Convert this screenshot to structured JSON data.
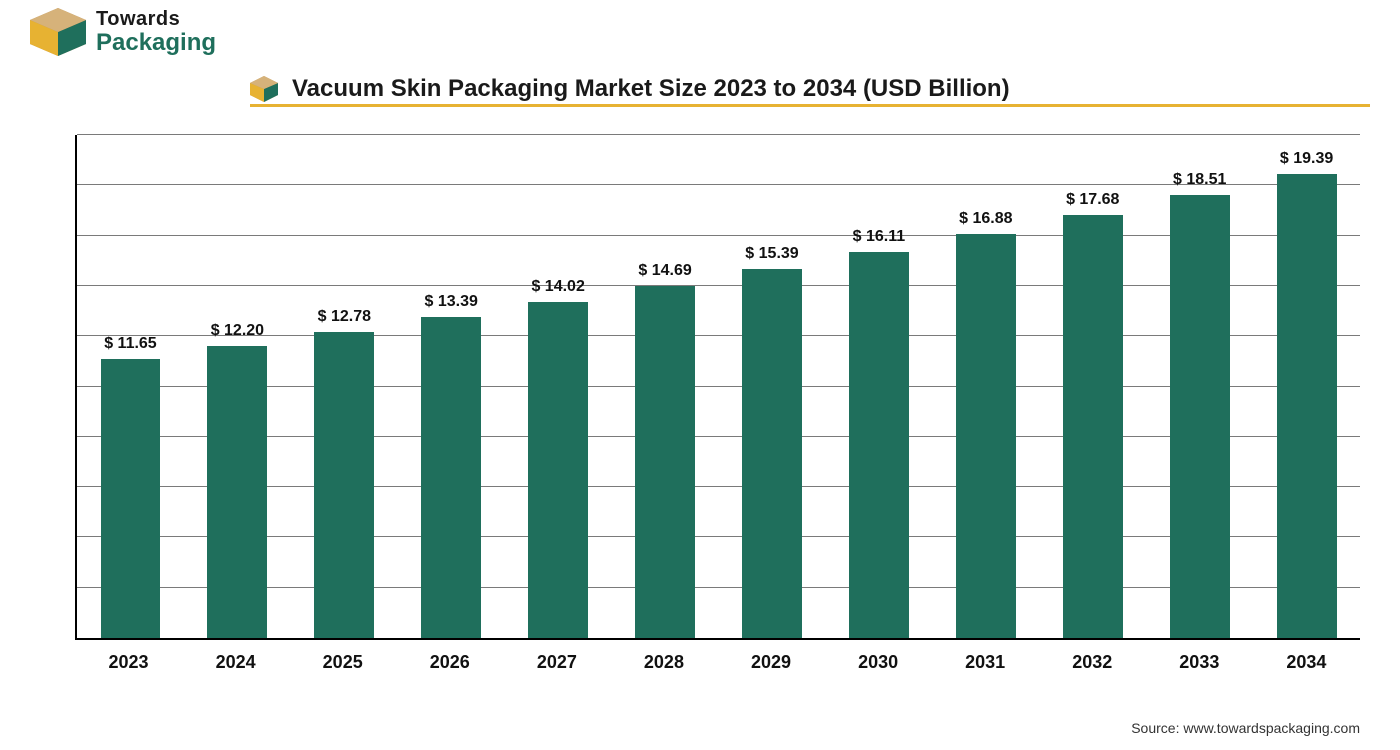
{
  "brand": {
    "top": "Towards",
    "bottom": "Packaging"
  },
  "title": "Vacuum Skin Packaging Market Size 2023 to 2034 (USD Billion)",
  "source": "Source: www.towardspackaging.com",
  "chart": {
    "type": "bar",
    "years": [
      "2023",
      "2024",
      "2025",
      "2026",
      "2027",
      "2028",
      "2029",
      "2030",
      "2031",
      "2032",
      "2033",
      "2034"
    ],
    "values": [
      11.65,
      12.2,
      12.78,
      13.39,
      14.02,
      14.69,
      15.39,
      16.11,
      16.88,
      17.68,
      18.51,
      19.39
    ],
    "value_prefix": "$ ",
    "bar_color": "#1f6f5c",
    "grid_color": "#7a7a7a",
    "axis_color": "#000000",
    "background": "#ffffff",
    "ylim_max": 21,
    "gridlines": 10,
    "bar_width_pct": 56,
    "label_fontsize": 16,
    "xlabel_fontsize": 18,
    "title_fontsize": 24,
    "title_underline_color": "#e7b232",
    "brand_green": "#1f6f5c",
    "brand_gold": "#e7b232",
    "brand_tan": "#b58a4a"
  }
}
